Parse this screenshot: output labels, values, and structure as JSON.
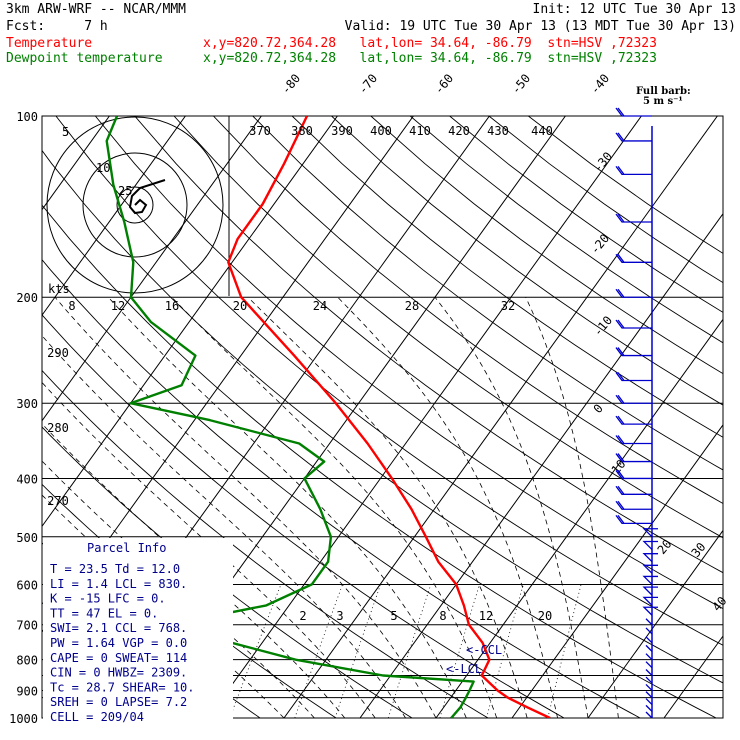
{
  "header": {
    "model": "3km ARW-WRF -- NCAR/MMM",
    "init": "Init: 12 UTC Tue 30 Apr 13",
    "fcst": "Fcst:     7 h",
    "valid": "Valid: 19 UTC Tue 30 Apr 13 (13 MDT Tue 30 Apr 13)",
    "temp_label": "Temperature",
    "dew_label": "Dewpoint temperature",
    "loc_info": "x,y=820.72,364.28   lat,lon= 34.64, -86.79  stn=HSV ,72323"
  },
  "colors": {
    "temperature": "#ff0000",
    "dewpoint": "#008000",
    "info": "#00008b",
    "barbs": "#0000cd",
    "grid": "#000000"
  },
  "barb_legend": {
    "title": "Full barb:",
    "value": "5 m s⁻¹"
  },
  "parcel_info": {
    "title": "Parcel Info",
    "rows": [
      "T  =    23.5  Td =  12.0",
      "LI =     1.4  LCL = 830.",
      "K  =     -15  LFC =   0.",
      "TT =      47  EL  =   0.",
      "SWI=     2.1  CCL = 768.",
      "PW =    1.64  VGP =  0.0",
      "CAPE =     0  SWEAT= 114",
      "CIN  =     0  HWBZ= 2309.",
      "Tc   =  28.7  SHEAR=  10.",
      "SREH =     0  LAPSE=  7.2",
      "CELL = 209/04"
    ]
  },
  "markers": {
    "ccl": "<-CCL",
    "lcl": "<-LCL"
  },
  "chart_data": {
    "type": "line",
    "title": "",
    "ylabel": "",
    "xlabel": "",
    "yscale": "log",
    "ylim": [
      1000,
      100
    ],
    "pressure_ticks": [
      100,
      200,
      300,
      400,
      500,
      600,
      700,
      800,
      900,
      1000
    ],
    "isobar_extra": [
      850,
      925
    ],
    "isotherm_labels": [
      "-80",
      "-70",
      "-60",
      "-50",
      "-40",
      "-30",
      "-20",
      "-10",
      "0",
      "10",
      "20",
      "30",
      "40"
    ],
    "theta_labels": [
      "370",
      "380",
      "390",
      "400",
      "410",
      "420",
      "430",
      "440"
    ],
    "mixing_ratio_labels": [
      "2",
      "3",
      "5",
      "8",
      "12",
      "20"
    ],
    "adiabat_side_labels": [
      "290",
      "280",
      "270"
    ],
    "hodograph_speed_labels": [
      "8",
      "12",
      "16",
      "20",
      "24",
      "28",
      "32"
    ],
    "hodograph_ring_labels": [
      "5",
      "10",
      "25"
    ],
    "hodograph_units": "kts",
    "series": [
      {
        "name": "Temperature",
        "points": [
          [
            1000,
            25.0
          ],
          [
            960,
            21.0
          ],
          [
            925,
            17.5
          ],
          [
            900,
            15.5
          ],
          [
            850,
            12.0
          ],
          [
            800,
            11.5
          ],
          [
            750,
            9.0
          ],
          [
            700,
            5.5
          ],
          [
            650,
            3.0
          ],
          [
            600,
            0.0
          ],
          [
            550,
            -4.5
          ],
          [
            500,
            -8.5
          ],
          [
            450,
            -13.0
          ],
          [
            400,
            -18.5
          ],
          [
            350,
            -25.0
          ],
          [
            300,
            -33.0
          ],
          [
            250,
            -43.0
          ],
          [
            200,
            -55.5
          ],
          [
            175,
            -60.5
          ],
          [
            160,
            -61.5
          ],
          [
            140,
            -61.5
          ],
          [
            120,
            -62.5
          ],
          [
            100,
            -64.0
          ]
        ]
      },
      {
        "name": "Dewpoint temperature",
        "points": [
          [
            1000,
            12.0
          ],
          [
            960,
            12.2
          ],
          [
            925,
            12.0
          ],
          [
            900,
            11.8
          ],
          [
            870,
            11.5
          ],
          [
            850,
            -1.0
          ],
          [
            800,
            -14.0
          ],
          [
            750,
            -24.0
          ],
          [
            700,
            -34.0
          ],
          [
            650,
            -23.0
          ],
          [
            600,
            -19.0
          ],
          [
            550,
            -19.0
          ],
          [
            500,
            -21.0
          ],
          [
            450,
            -25.0
          ],
          [
            400,
            -30.0
          ],
          [
            375,
            -29.0
          ],
          [
            350,
            -34.0
          ],
          [
            320,
            -48.0
          ],
          [
            300,
            -60.0
          ],
          [
            280,
            -55.0
          ],
          [
            250,
            -56.0
          ],
          [
            220,
            -65.0
          ],
          [
            200,
            -70.0
          ],
          [
            175,
            -73.0
          ],
          [
            150,
            -78.0
          ],
          [
            130,
            -83.0
          ],
          [
            110,
            -88.0
          ],
          [
            100,
            -89.0
          ]
        ]
      }
    ],
    "wind_barbs_pressure": [
      1000,
      975,
      950,
      925,
      900,
      875,
      850,
      825,
      800,
      775,
      750,
      725,
      700,
      675,
      650,
      625,
      600,
      575,
      550,
      525,
      500,
      475,
      450,
      425,
      400,
      375,
      350,
      325,
      300,
      275,
      250,
      225,
      200,
      175,
      150,
      125,
      110,
      100
    ]
  }
}
